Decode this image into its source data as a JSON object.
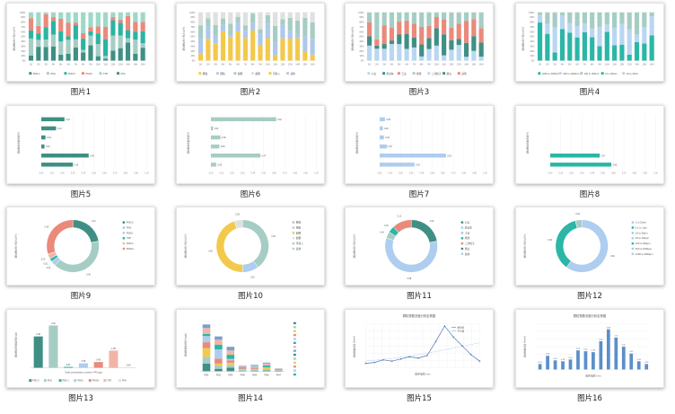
{
  "gallery": {
    "items": [
      {
        "caption": "图片1",
        "kind": "stacked",
        "palette": [
          "#3f8f84",
          "#a6cdc4",
          "#2db3a2",
          "#e98a7b",
          "#9fd8c9"
        ],
        "legend": [
          "PM0.1",
          "PM1",
          "PM2.5",
          "PM10",
          "TSP",
          "PM>"
        ]
      },
      {
        "caption": "图片2",
        "kind": "stacked",
        "palette": [
          "#f3c94c",
          "#aec8ec",
          "#a6cdc4",
          "#e0e0e0"
        ],
        "legend": [
          "粗粒",
          "细粒",
          "超细",
          "超粗",
          "可吸入",
          "其他"
        ]
      },
      {
        "caption": "图片3",
        "kind": "stacked",
        "palette": [
          "#b9d6f2",
          "#3f8f84",
          "#e98a7b",
          "#a6cdc4"
        ],
        "legend": [
          "沙尘",
          "机动车",
          "工业",
          "燃煤",
          "二次粒子",
          "扬尘",
          "其他"
        ]
      },
      {
        "caption": "图片4",
        "kind": "stacked",
        "palette": [
          "#2bb6a6",
          "#b9d6f2",
          "#a6cdc4"
        ],
        "legend": [
          "1000 to 3000nm",
          "300 to 1000nm",
          "100 to 300nm",
          "0 to 100nm",
          "10 to 30nm"
        ]
      },
      {
        "caption": "图片5",
        "kind": "hbar",
        "color": "#3f8f84",
        "values": [
          0.22,
          0.14,
          0.04,
          0.03,
          0.45,
          0.3
        ],
        "labels": [
          "0.22",
          "0.14",
          "0.04",
          "0.03",
          "0.45",
          "0.30"
        ]
      },
      {
        "caption": "图片6",
        "kind": "hbar",
        "color": "#a6cdc4",
        "values": [
          0.62,
          0.02,
          0.09,
          0.08,
          0.47,
          0.05
        ],
        "labels": [
          "0.62",
          "0.02",
          "0.09",
          "0.08",
          "0.47",
          "0.05"
        ]
      },
      {
        "caption": "图片7",
        "kind": "hbar",
        "color": "#aecdef",
        "values": [
          0.05,
          0.03,
          0.04,
          0.07,
          0.63,
          0.33
        ],
        "labels": [
          "0.05",
          "0.03",
          "0.04",
          "0.07",
          "0.63",
          "0.33"
        ]
      },
      {
        "caption": "图片8",
        "kind": "hbar",
        "color": "#2bb6a6",
        "values": [
          0.0,
          0.0,
          0.0,
          0.0,
          0.47,
          0.58
        ],
        "labels": [
          "",
          "",
          "",
          "",
          "0.47",
          "0.58"
        ]
      },
      {
        "caption": "图片9",
        "kind": "donut",
        "colors": [
          "#3f8f84",
          "#a6cdc4",
          "#aecdef",
          "#2bb6a6",
          "#f0b5a7",
          "#e98a7b"
        ],
        "values": [
          22,
          40,
          3,
          2,
          3,
          30
        ],
        "legend": [
          "PM2.5",
          "PM1",
          "PM10",
          "TSP",
          "PM0.1",
          "PM10+"
        ]
      },
      {
        "caption": "图片10",
        "kind": "donut",
        "colors": [
          "#a6cdc4",
          "#aecdef",
          "#f3c94c",
          "#e0e0e0"
        ],
        "values": [
          40,
          10,
          45,
          5
        ],
        "legend": [
          "粗粒",
          "细粒",
          "超细",
          "超粗",
          "可吸入",
          "其他"
        ]
      },
      {
        "caption": "图片11",
        "kind": "donut",
        "colors": [
          "#3f8f84",
          "#aecdef",
          "#a6cdc4",
          "#2bb6a6",
          "#e98a7b"
        ],
        "values": [
          22,
          58,
          4,
          4,
          12
        ],
        "legend": [
          "沙尘",
          "机动车",
          "工业",
          "燃煤",
          "二次粒子",
          "扬尘",
          "其他"
        ]
      },
      {
        "caption": "图片12",
        "kind": "donut",
        "colors": [
          "#aecdef",
          "#2bb6a6",
          "#a6cdc4"
        ],
        "values": [
          60,
          36,
          4
        ],
        "legend": [
          "1 to 10μm",
          "0.1 to 1μm",
          "10 to 30μm",
          "30 to 100μm",
          "100 to 300μm",
          "300 to 1000μm",
          "1000 to 3000μm"
        ]
      },
      {
        "caption": "图片13",
        "kind": "vbar",
        "colors": [
          "#3f8f84",
          "#a6cdc4",
          "#2bb6a6",
          "#aecdef",
          "#e98a7b",
          "#f0b5a7",
          "#e0e0e0"
        ],
        "values": [
          2.46,
          3.32,
          0.07,
          0.35,
          0.45,
          1.35,
          0.04
        ],
        "labels": [
          "2.46",
          "3.32",
          "0.07",
          "0.35",
          "0.45",
          "1.35",
          "0.04"
        ],
        "xlabel": "Total concentration content / PM (μg)",
        "legend": [
          "PM2.5",
          "PM1",
          "PM0.1",
          "PM10",
          "PM10+",
          "TSP",
          "PM>"
        ]
      },
      {
        "caption": "图片14",
        "kind": "stackbar",
        "colors": [
          "#3f8f84",
          "#a6cdc4",
          "#f3c94c",
          "#e98a7b",
          "#aecdef",
          "#2bb6a6",
          "#f0b5a7",
          "#7b9fcf"
        ],
        "cats": [
          "PM1",
          "PM2",
          "PM3",
          "PM4",
          "PM5",
          "PM6",
          "PM7"
        ],
        "totals": [
          0.86,
          0.64,
          0.45,
          0.1,
          0.12,
          0.16,
          0.05
        ]
      },
      {
        "caption": "图片15",
        "kind": "line",
        "title": "颗粒物数浓度分析走势图",
        "values": [
          0.1,
          0.12,
          0.18,
          0.15,
          0.2,
          0.25,
          0.22,
          0.28,
          0.6,
          0.95,
          0.7,
          0.5,
          0.3,
          0.15
        ],
        "trend": [
          0.15,
          0.17,
          0.19,
          0.21,
          0.24,
          0.27,
          0.3,
          0.33,
          0.37,
          0.41,
          0.45,
          0.49,
          0.53,
          0.57
        ],
        "legend": [
          "数浓度",
          "平均值"
        ],
        "xlabel": "粒径范围 / nm"
      },
      {
        "caption": "图片16",
        "kind": "col",
        "title": "颗粒物数浓度分析走势图",
        "color": "#5b8fc9",
        "values": [
          0.12,
          0.3,
          0.2,
          0.18,
          0.22,
          0.42,
          0.4,
          0.38,
          0.62,
          0.88,
          0.7,
          0.5,
          0.35,
          0.18,
          0.12
        ],
        "xlabel": "粒径范围 / nm"
      }
    ]
  }
}
